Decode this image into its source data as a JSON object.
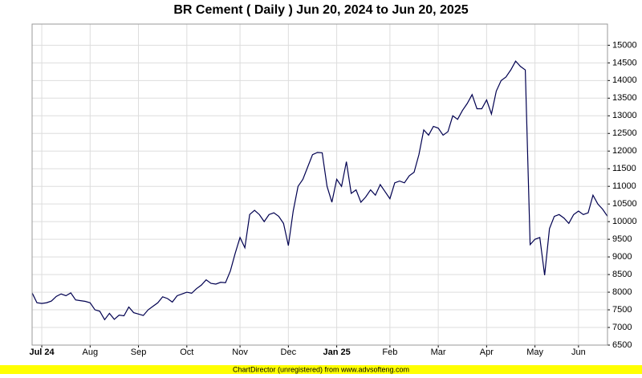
{
  "chart_data": {
    "type": "line",
    "title": "BR Cement ( Daily ) Jun 20, 2024 to Jun 20, 2025",
    "footer": "ChartDirector (unregistered) from www.advsofteng.com",
    "categories": [
      null,
      null,
      "Jul 24",
      null,
      null,
      null,
      null,
      null,
      null,
      null,
      null,
      null,
      "Aug",
      null,
      null,
      null,
      null,
      null,
      null,
      null,
      null,
      null,
      "Sep",
      null,
      null,
      null,
      null,
      null,
      null,
      null,
      null,
      null,
      "Oct",
      null,
      null,
      null,
      null,
      null,
      null,
      null,
      null,
      null,
      null,
      "Nov",
      null,
      null,
      null,
      null,
      null,
      null,
      null,
      null,
      null,
      "Dec",
      null,
      null,
      null,
      null,
      null,
      null,
      null,
      null,
      null,
      "Jan 25",
      null,
      null,
      null,
      null,
      null,
      null,
      null,
      null,
      null,
      null,
      "Feb",
      null,
      null,
      null,
      null,
      null,
      null,
      null,
      null,
      null,
      "Mar",
      null,
      null,
      null,
      null,
      null,
      null,
      null,
      null,
      null,
      "Apr",
      null,
      null,
      null,
      null,
      null,
      null,
      null,
      null,
      null,
      "May",
      null,
      null,
      null,
      null,
      null,
      null,
      null,
      null,
      "Jun",
      null,
      null,
      null,
      null,
      null,
      null
    ],
    "series": [
      {
        "color": "#000050",
        "values": [
          7980,
          7700,
          7680,
          7700,
          7750,
          7880,
          7950,
          7900,
          7980,
          7780,
          7760,
          7740,
          7700,
          7500,
          7460,
          7220,
          7400,
          7230,
          7350,
          7330,
          7580,
          7420,
          7380,
          7340,
          7500,
          7600,
          7700,
          7870,
          7820,
          7720,
          7900,
          7950,
          8000,
          7970,
          8100,
          8200,
          8350,
          8250,
          8230,
          8280,
          8270,
          8600,
          9100,
          9550,
          9260,
          10200,
          10320,
          10200,
          10000,
          10200,
          10250,
          10150,
          9950,
          9320,
          10300,
          11000,
          11200,
          11550,
          11900,
          11960,
          11950,
          11000,
          10550,
          11200,
          11000,
          11700,
          10800,
          10900,
          10550,
          10700,
          10900,
          10750,
          11050,
          10850,
          10650,
          11100,
          11150,
          11100,
          11300,
          11400,
          11900,
          12600,
          12450,
          12700,
          12650,
          12450,
          12550,
          13000,
          12900,
          13150,
          13350,
          13600,
          13200,
          13200,
          13450,
          13050,
          13700,
          14000,
          14100,
          14300,
          14550,
          14400,
          14300,
          9350,
          9500,
          9550,
          8480,
          9800,
          10150,
          10200,
          10100,
          9950,
          10200,
          10300,
          10200,
          10250,
          10750,
          10500,
          10350,
          10150
        ]
      }
    ],
    "ylim": [
      6500,
      15600
    ],
    "yticks": [
      6500,
      7000,
      7500,
      8000,
      8500,
      9000,
      9500,
      10000,
      10500,
      11000,
      11500,
      12000,
      12500,
      13000,
      13500,
      14000,
      14500,
      15000
    ],
    "grid": true
  }
}
